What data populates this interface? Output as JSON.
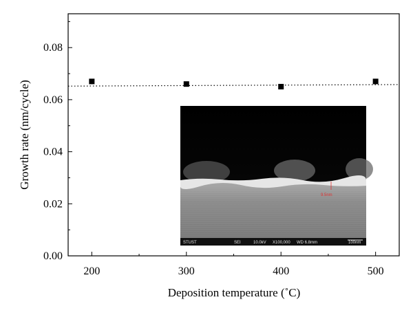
{
  "chart_data": {
    "type": "scatter",
    "xlabel": "Deposition temperature (˚C)",
    "ylabel": "Growth rate (nm/cycle)",
    "xlim": [
      175,
      525
    ],
    "ylim": [
      0.0,
      0.093
    ],
    "x_ticks": [
      200,
      300,
      400,
      500
    ],
    "x_tick_labels": [
      "200",
      "300",
      "400",
      "500"
    ],
    "y_ticks": [
      0.0,
      0.02,
      0.04,
      0.06,
      0.08
    ],
    "y_tick_labels": [
      "0.00",
      "0.02",
      "0.04",
      "0.06",
      "0.08"
    ],
    "series": [
      {
        "marker": "square",
        "color": "#000000",
        "x": [
          200,
          300,
          400,
          500
        ],
        "y": [
          0.067,
          0.066,
          0.065,
          0.067
        ]
      }
    ],
    "reference_line": {
      "style": "dotted",
      "x": [
        175,
        525
      ],
      "y": [
        0.0652,
        0.0658
      ]
    },
    "grid": false,
    "inset_image": {
      "type": "SEM cross-section micrograph",
      "footer_text": [
        "STUST",
        "SEI",
        "10.0kV",
        "X100,000",
        "WD 6.8mm",
        "100nm"
      ],
      "annotation": "9.5nm",
      "colors": {
        "top": "#000000",
        "film": "#cfcfcf",
        "substrate": "#8c8c8c",
        "footer": "#111111"
      }
    }
  }
}
